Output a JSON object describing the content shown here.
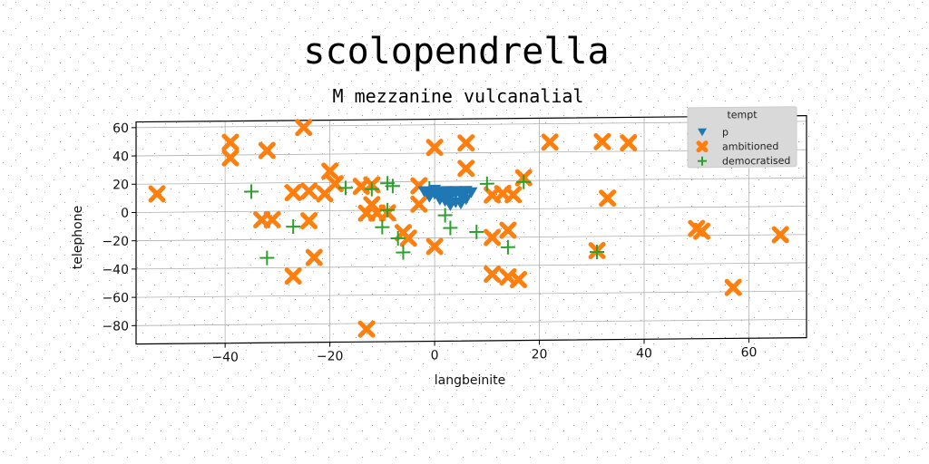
{
  "chart_data": {
    "type": "scatter",
    "title": "scolopendrella",
    "subtitle": "M mezzanine vulcanalial",
    "xlabel": "langbeinite",
    "ylabel": "telephone",
    "xlim": [
      -57,
      71
    ],
    "ylim": [
      -93,
      64
    ],
    "xticks": [
      -40,
      -20,
      0,
      20,
      40,
      60
    ],
    "yticks": [
      -80,
      -60,
      -40,
      -20,
      0,
      20,
      40,
      60
    ],
    "grid": true,
    "legend": {
      "title": "tempt",
      "position": "top-right"
    },
    "series": [
      {
        "name": "p",
        "marker": "triangle-down",
        "color": "#1f77b4",
        "points": [
          [
            -1,
            12
          ],
          [
            0,
            11
          ],
          [
            1,
            12
          ],
          [
            2,
            11
          ],
          [
            3,
            12
          ],
          [
            4,
            11
          ],
          [
            5,
            12
          ],
          [
            6,
            12
          ],
          [
            7,
            12
          ],
          [
            0,
            14
          ],
          [
            2,
            13
          ],
          [
            4,
            13
          ],
          [
            6,
            13
          ],
          [
            1,
            9
          ],
          [
            3,
            9
          ],
          [
            5,
            10
          ],
          [
            2,
            6
          ],
          [
            4,
            5
          ],
          [
            6,
            7
          ],
          [
            3,
            3
          ],
          [
            5,
            4
          ],
          [
            -2,
            13
          ],
          [
            -1,
            9
          ],
          [
            1,
            7
          ]
        ]
      },
      {
        "name": "ambitioned",
        "marker": "x-thick",
        "color": "#ff7f0e",
        "points": [
          [
            -53,
            13
          ],
          [
            -39,
            49
          ],
          [
            -39,
            38
          ],
          [
            -32,
            43
          ],
          [
            -25,
            59
          ],
          [
            -20,
            28
          ],
          [
            -19,
            19
          ],
          [
            -21,
            12
          ],
          [
            -24,
            14
          ],
          [
            -27,
            13
          ],
          [
            -14,
            17
          ],
          [
            -12,
            18
          ],
          [
            -12,
            4
          ],
          [
            -13,
            -2
          ],
          [
            -11,
            -2
          ],
          [
            -9,
            -2
          ],
          [
            -6,
            -16
          ],
          [
            -5,
            -20
          ],
          [
            -3,
            4
          ],
          [
            -3,
            17
          ],
          [
            0,
            44
          ],
          [
            6,
            47
          ],
          [
            6,
            29
          ],
          [
            -33,
            -6
          ],
          [
            -31,
            -6
          ],
          [
            -24,
            -7
          ],
          [
            -23,
            -33
          ],
          [
            -27,
            -46
          ],
          [
            -13,
            -84
          ],
          [
            0,
            -26
          ],
          [
            11,
            10
          ],
          [
            13,
            11
          ],
          [
            15,
            10
          ],
          [
            17,
            22
          ],
          [
            11,
            -20
          ],
          [
            14,
            -15
          ],
          [
            11,
            -46
          ],
          [
            14,
            -48
          ],
          [
            16,
            -50
          ],
          [
            22,
            47
          ],
          [
            32,
            47
          ],
          [
            37,
            46
          ],
          [
            33,
            7
          ],
          [
            31,
            -30
          ],
          [
            50,
            -15
          ],
          [
            51,
            -17
          ],
          [
            57,
            -57
          ],
          [
            66,
            -20
          ]
        ]
      },
      {
        "name": "democratised",
        "marker": "plus",
        "color": "#2ca02c",
        "points": [
          [
            -35,
            14
          ],
          [
            -17,
            16
          ],
          [
            -12,
            15
          ],
          [
            -9,
            19
          ],
          [
            -8,
            17
          ],
          [
            -9,
            0
          ],
          [
            -10,
            -12
          ],
          [
            -7,
            -20
          ],
          [
            -6,
            -30
          ],
          [
            -1,
            15
          ],
          [
            2,
            -4
          ],
          [
            3,
            -13
          ],
          [
            8,
            -16
          ],
          [
            10,
            18
          ],
          [
            14,
            -27
          ],
          [
            17,
            19
          ],
          [
            -27,
            -11
          ],
          [
            -32,
            -33
          ],
          [
            31,
            -31
          ]
        ]
      }
    ]
  }
}
